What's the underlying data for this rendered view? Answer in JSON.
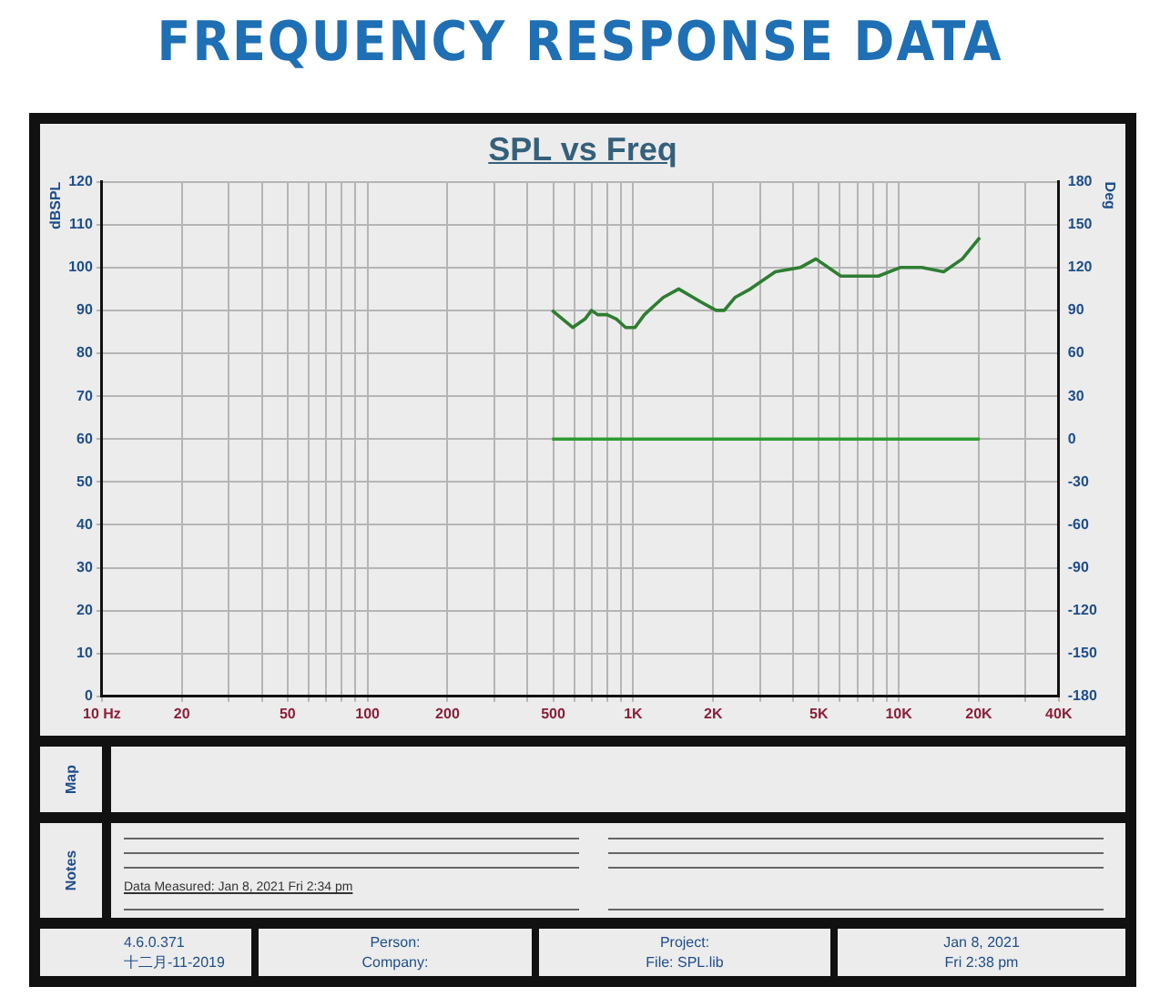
{
  "chart_data": {
    "type": "line",
    "title": "FREQUENCY RESPONSE DATA",
    "subtitle": "SPL vs Freq",
    "ylabel": "dBSPL",
    "y2label": "Deg",
    "annotations": [
      "Map",
      "Notes",
      "Data Measured: Jan  8, 2021  Fri  2:34 pm",
      "4.6.0.371",
      "十二月-11-2019",
      "Person:",
      "Company:",
      "Project:",
      "File: SPL.lib",
      "Jan  8, 2021",
      "Fri  2:38 pm"
    ],
    "log": "x",
    "grid": true,
    "legend": false,
    "marker": "none",
    "line_style": "solid",
    "xlim": [
      10,
      40000
    ],
    "xticks": [
      {
        "value": 10,
        "label": "10 Hz"
      },
      20,
      {
        "value": 30,
        "label": null
      },
      {
        "value": 40,
        "label": null
      },
      50,
      {
        "value": 60,
        "label": null
      },
      {
        "value": 70,
        "label": null
      },
      {
        "value": 80,
        "label": null
      },
      {
        "value": 90,
        "label": null
      },
      100,
      200,
      {
        "value": 300,
        "label": null
      },
      {
        "value": 400,
        "label": null
      },
      500,
      {
        "value": 600,
        "label": null
      },
      {
        "value": 700,
        "label": null
      },
      {
        "value": 800,
        "label": null
      },
      {
        "value": 900,
        "label": null
      },
      {
        "value": 1000,
        "label": "1K"
      },
      {
        "value": 2000,
        "label": "2K"
      },
      {
        "value": 3000,
        "label": null
      },
      {
        "value": 4000,
        "label": null
      },
      {
        "value": 5000,
        "label": "5K"
      },
      {
        "value": 6000,
        "label": null
      },
      {
        "value": 7000,
        "label": null
      },
      {
        "value": 8000,
        "label": null
      },
      {
        "value": 9000,
        "label": null
      },
      {
        "value": 10000,
        "label": "10K"
      },
      {
        "value": 20000,
        "label": "20K"
      },
      {
        "value": 30000,
        "label": null
      },
      {
        "value": 40000,
        "label": "40K"
      }
    ],
    "ylim": [
      0,
      120
    ],
    "yticks": [
      0,
      10,
      20,
      30,
      40,
      50,
      60,
      70,
      80,
      90,
      100,
      110,
      120
    ],
    "y2lim": [
      -180,
      180
    ],
    "y2ticks": [
      -180,
      -150,
      -120,
      -90,
      -60,
      -30,
      0,
      30,
      60,
      90,
      120,
      150,
      180
    ],
    "series": [
      {
        "color": "#2e7d32",
        "x": [
          495,
          592,
          659,
          697,
          735,
          797,
          864,
          937,
          1016,
          1102,
          1297,
          1484,
          1795,
          2051,
          2203,
          2415,
          2763,
          3428,
          4254,
          4874,
          6052,
          7315,
          8375,
          10115,
          12220,
          14760,
          17340,
          20180
        ],
        "values": [
          90,
          86,
          88,
          90,
          89,
          89,
          88,
          86,
          86,
          89,
          93,
          95,
          92,
          90,
          90,
          93,
          95,
          99,
          100,
          102,
          98,
          98,
          98,
          100,
          100,
          99,
          102,
          107
        ]
      },
      {
        "color": "#2e9a2e",
        "axis": "y2",
        "x": [
          495,
          20180
        ],
        "values": [
          0,
          0
        ]
      }
    ]
  }
}
